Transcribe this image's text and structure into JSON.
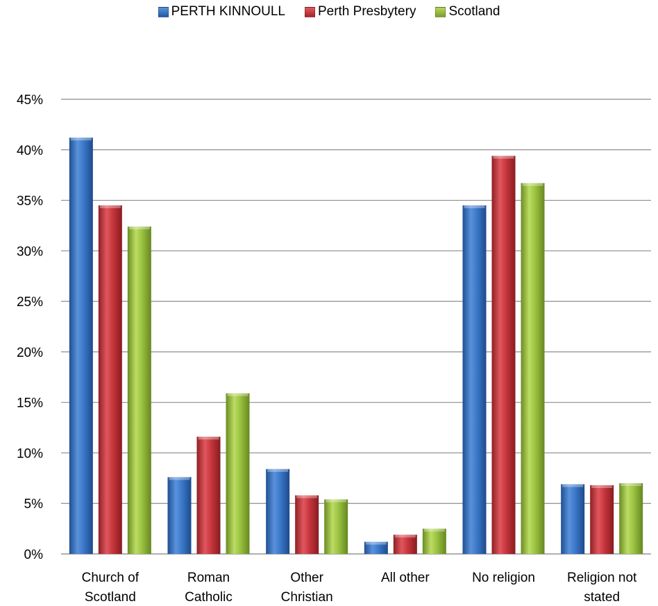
{
  "chart_data": {
    "type": "bar",
    "categories": [
      [
        "Church of",
        "Scotland"
      ],
      [
        "Roman",
        "Catholic"
      ],
      [
        "Other",
        "Christian"
      ],
      [
        "All other"
      ],
      [
        "No religion"
      ],
      [
        "Religion not",
        "stated"
      ]
    ],
    "series": [
      {
        "name": "PERTH KINNOULL",
        "color": "#2f6fc2",
        "values": [
          41.2,
          7.6,
          8.4,
          1.2,
          34.5,
          6.9
        ]
      },
      {
        "name": "Perth Presbytery",
        "color": "#c0333a",
        "values": [
          34.5,
          11.6,
          5.8,
          1.9,
          39.4,
          6.8
        ]
      },
      {
        "name": "Scotland",
        "color": "#93b93b",
        "values": [
          32.4,
          15.9,
          5.4,
          2.5,
          36.7,
          7.0
        ]
      }
    ],
    "ylim": [
      0,
      45
    ],
    "yticks": [
      "0%",
      "5%",
      "10%",
      "15%",
      "20%",
      "25%",
      "30%",
      "35%",
      "40%",
      "45%"
    ],
    "ytick_values": [
      0,
      5,
      10,
      15,
      20,
      25,
      30,
      35,
      40,
      45
    ],
    "grid": true,
    "legend_position": "top"
  }
}
